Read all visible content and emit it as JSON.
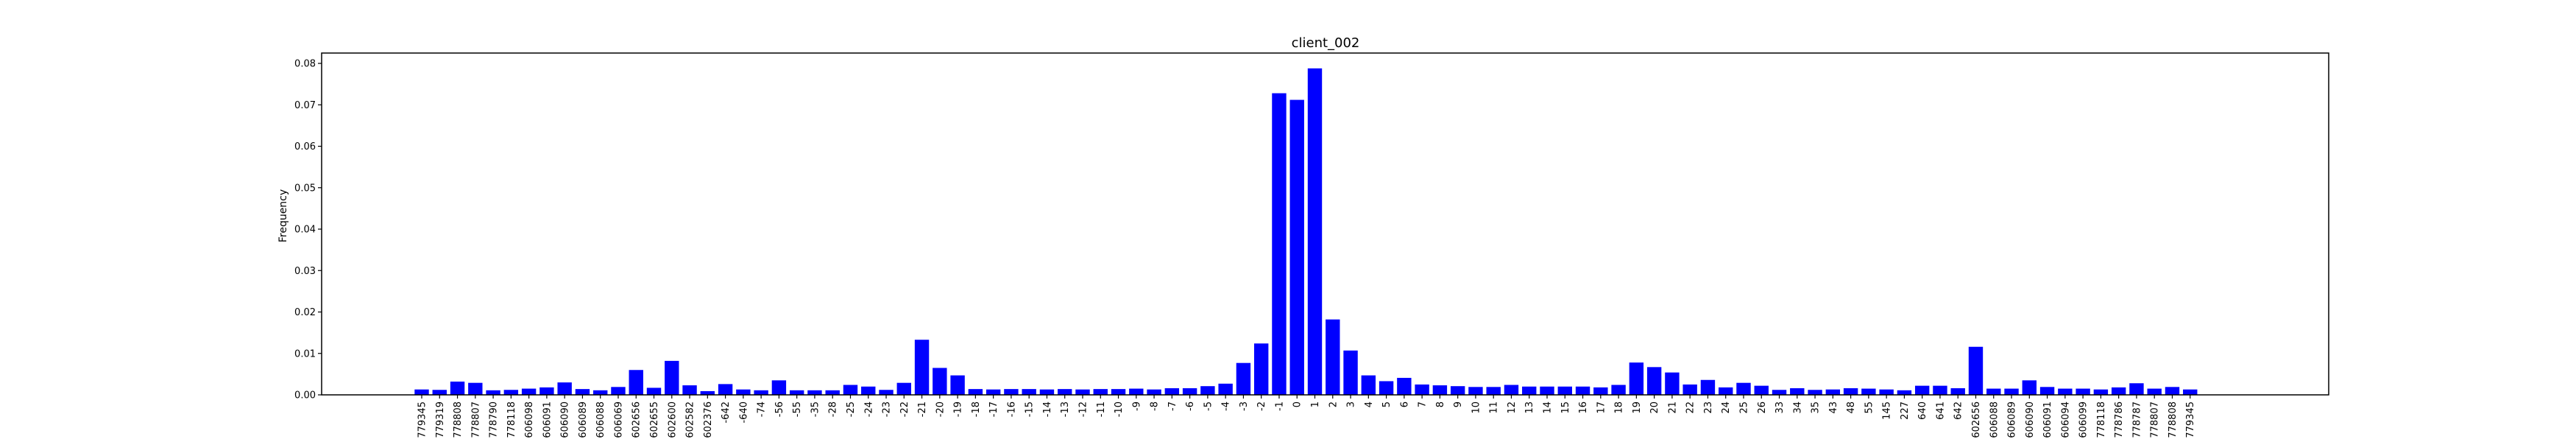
{
  "chart_data": {
    "type": "bar",
    "title": "client_002",
    "xlabel": "",
    "ylabel": "Frequency",
    "ylim": [
      0,
      0.0825
    ],
    "yticks": [
      0.0,
      0.01,
      0.02,
      0.03,
      0.04,
      0.05,
      0.06,
      0.07,
      0.08
    ],
    "ytick_labels": [
      "0.00",
      "0.01",
      "0.02",
      "0.03",
      "0.04",
      "0.05",
      "0.06",
      "0.07",
      "0.08"
    ],
    "grid": false,
    "legend": "none",
    "bar_color": "#0000ff",
    "categories": [
      "779345",
      "779319",
      "778808",
      "778807",
      "778790",
      "778118",
      "606098",
      "606091",
      "606090",
      "606089",
      "606088",
      "606069",
      "602656",
      "602655",
      "602600",
      "602582",
      "602376",
      "-642",
      "-640",
      "-74",
      "-56",
      "-55",
      "-35",
      "-28",
      "-25",
      "-24",
      "-23",
      "-22",
      "-21",
      "-20",
      "-19",
      "-18",
      "-17",
      "-16",
      "-15",
      "-14",
      "-13",
      "-12",
      "-11",
      "-10",
      "-9",
      "-8",
      "-7",
      "-6",
      "-5",
      "-4",
      "-3",
      "-2",
      "-1",
      "0",
      "1",
      "2",
      "3",
      "4",
      "5",
      "6",
      "7",
      "8",
      "9",
      "10",
      "11",
      "12",
      "13",
      "14",
      "15",
      "16",
      "17",
      "18",
      "19",
      "20",
      "21",
      "22",
      "23",
      "24",
      "25",
      "26",
      "33",
      "34",
      "35",
      "43",
      "48",
      "55",
      "145",
      "227",
      "640",
      "641",
      "642",
      "602656",
      "606088",
      "606089",
      "606090",
      "606091",
      "606094",
      "606099",
      "778118",
      "778786",
      "778787",
      "778807",
      "778808",
      "779345"
    ],
    "values": [
      0.0013,
      0.0012,
      0.0032,
      0.0029,
      0.0011,
      0.0012,
      0.0015,
      0.0018,
      0.003,
      0.0014,
      0.0011,
      0.0019,
      0.006,
      0.0017,
      0.0082,
      0.0023,
      0.0009,
      0.0026,
      0.0013,
      0.0011,
      0.0035,
      0.0011,
      0.0011,
      0.0011,
      0.0024,
      0.002,
      0.0012,
      0.0029,
      0.0133,
      0.0065,
      0.0047,
      0.0014,
      0.0013,
      0.0014,
      0.0014,
      0.0013,
      0.0014,
      0.0013,
      0.0014,
      0.0014,
      0.0015,
      0.0013,
      0.0016,
      0.0016,
      0.0021,
      0.0027,
      0.0077,
      0.0124,
      0.0728,
      0.0712,
      0.0788,
      0.0182,
      0.0107,
      0.0047,
      0.0033,
      0.0041,
      0.0025,
      0.0023,
      0.0021,
      0.0019,
      0.0019,
      0.0024,
      0.002,
      0.002,
      0.002,
      0.002,
      0.0018,
      0.0024,
      0.0078,
      0.0067,
      0.0054,
      0.0025,
      0.0036,
      0.0018,
      0.0029,
      0.0022,
      0.0012,
      0.0016,
      0.0012,
      0.0013,
      0.0016,
      0.0015,
      0.0013,
      0.0011,
      0.0022,
      0.0022,
      0.0016,
      0.0116,
      0.0015,
      0.0015,
      0.0035,
      0.0019,
      0.0015,
      0.0015,
      0.0013,
      0.0018,
      0.0028,
      0.0015,
      0.0019,
      0.0013
    ]
  }
}
